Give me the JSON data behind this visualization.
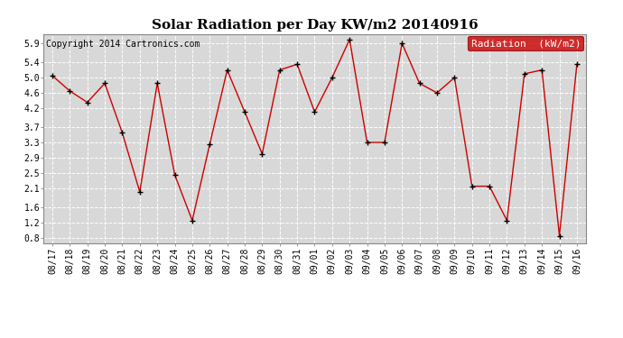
{
  "title": "Solar Radiation per Day KW/m2 20140916",
  "copyright_text": "Copyright 2014 Cartronics.com",
  "legend_label": "Radiation  (kW/m2)",
  "dates": [
    "08/17",
    "08/18",
    "08/19",
    "08/20",
    "08/21",
    "08/22",
    "08/23",
    "08/24",
    "08/25",
    "08/26",
    "08/27",
    "08/28",
    "08/29",
    "08/30",
    "08/31",
    "09/01",
    "09/02",
    "09/03",
    "09/04",
    "09/05",
    "09/06",
    "09/07",
    "09/08",
    "09/09",
    "09/10",
    "09/11",
    "09/12",
    "09/13",
    "09/14",
    "09/15",
    "09/16"
  ],
  "values": [
    5.05,
    4.65,
    4.35,
    4.85,
    3.55,
    2.0,
    4.85,
    2.45,
    1.25,
    3.25,
    5.2,
    4.1,
    3.0,
    5.2,
    5.35,
    4.1,
    5.0,
    6.0,
    3.3,
    3.3,
    5.9,
    4.85,
    4.6,
    5.0,
    2.15,
    2.15,
    1.25,
    5.1,
    5.2,
    0.85,
    5.35
  ],
  "line_color": "#cc0000",
  "marker_color": "black",
  "bg_color": "#ffffff",
  "plot_bg_color": "#d8d8d8",
  "grid_color": "#ffffff",
  "ylim": [
    0.65,
    6.15
  ],
  "yticks": [
    0.8,
    1.2,
    1.6,
    2.1,
    2.5,
    2.9,
    3.3,
    3.7,
    4.2,
    4.6,
    5.0,
    5.4,
    5.9
  ],
  "legend_bg": "#cc0000",
  "legend_text_color": "white",
  "title_fontsize": 11,
  "copyright_fontsize": 7,
  "tick_fontsize": 7,
  "legend_fontsize": 8
}
